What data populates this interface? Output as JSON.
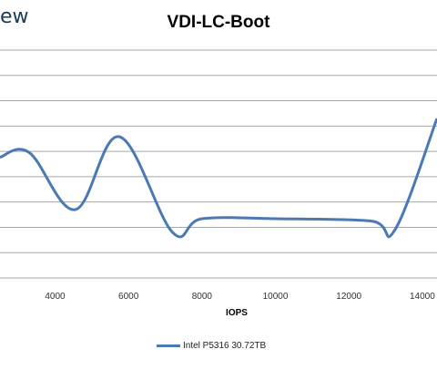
{
  "logo_text": "ew",
  "chart_data": {
    "type": "line",
    "title": "VDI-LC-Boot",
    "xlabel": "IOPS",
    "ylabel": "",
    "xlim": [
      2500,
      14400
    ],
    "x_ticks": [
      "4000",
      "6000",
      "8000",
      "10000",
      "12000",
      "14000"
    ],
    "x_tick_values": [
      4000,
      6000,
      8000,
      10000,
      12000,
      14000
    ],
    "y_gridlines": 9,
    "grid": true,
    "legend_position": "bottom",
    "series": [
      {
        "name": "Intel P5316 30.72TB",
        "color": "#4a79b4",
        "x": [
          2500,
          3300,
          4550,
          5750,
          7200,
          8000,
          10000,
          12600,
          13250,
          14400
        ],
        "y": [
          0.53,
          0.55,
          0.3,
          0.62,
          0.2,
          0.26,
          0.26,
          0.25,
          0.21,
          0.7
        ]
      }
    ]
  }
}
